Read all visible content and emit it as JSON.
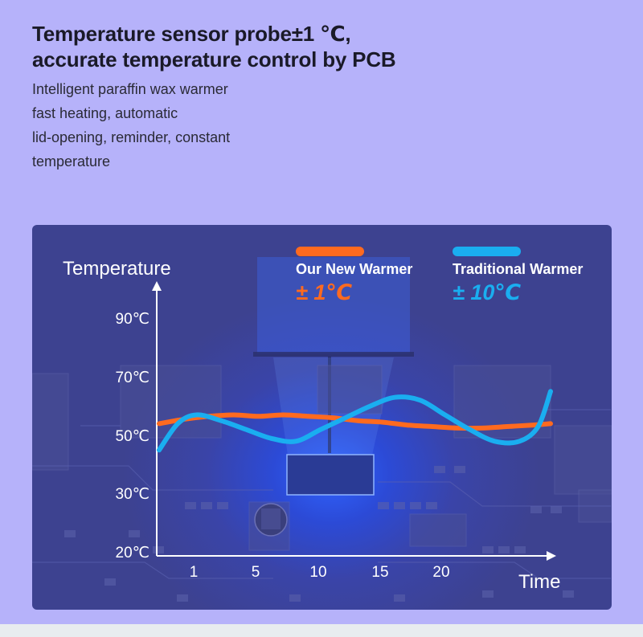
{
  "header": {
    "title_line1": "Temperature sensor probe±1 ℃,",
    "title_line2": "accurate temperature control by PCB",
    "desc_lines": [
      "Intelligent paraffin wax warmer",
      "fast heating, automatic",
      "lid-opening, reminder, constant",
      "temperature"
    ]
  },
  "colors": {
    "page_bg": "#b6b2fa",
    "panel_bg": "#3d4290",
    "orange": "#ff6a1f",
    "blue": "#1aaef0"
  },
  "chart_data": {
    "type": "line",
    "ylabel": "Temperature",
    "xlabel": "Time",
    "y_ticks": [
      {
        "value": 20,
        "label": "20℃"
      },
      {
        "value": 30,
        "label": "30℃"
      },
      {
        "value": 50,
        "label": "50℃"
      },
      {
        "value": 70,
        "label": "70℃"
      },
      {
        "value": 90,
        "label": "90℃"
      }
    ],
    "x_ticks": [
      {
        "value": 1,
        "label": "1"
      },
      {
        "value": 5,
        "label": "5"
      },
      {
        "value": 10,
        "label": "10"
      },
      {
        "value": 15,
        "label": "15"
      },
      {
        "value": 20,
        "label": "20"
      }
    ],
    "legend": [
      {
        "name": "Our New Warmer",
        "value_label": "± 1℃",
        "color": "#ff6a1f"
      },
      {
        "name": "Traditional Warmer",
        "value_label": "± 10℃",
        "color": "#1aaef0"
      }
    ],
    "series": [
      {
        "name": "Our New Warmer",
        "color": "#ff6a1f",
        "x": [
          0,
          2,
          4,
          6,
          8,
          10,
          12,
          14,
          16,
          18,
          20,
          22,
          24,
          26,
          28,
          30,
          31.5
        ],
        "y": [
          54,
          55.5,
          56.5,
          57,
          56.5,
          57,
          56.5,
          56,
          55,
          54.5,
          53.5,
          53,
          52.5,
          52.5,
          53,
          53.5,
          54
        ]
      },
      {
        "name": "Traditional Warmer",
        "color": "#1aaef0",
        "x": [
          0,
          1.5,
          3,
          5,
          7,
          9,
          11,
          13,
          15,
          17,
          19,
          21,
          23,
          25,
          27,
          29,
          30.5,
          31.5
        ],
        "y": [
          45,
          54,
          57,
          55,
          52,
          49,
          48,
          52,
          56,
          60,
          63,
          62,
          57,
          52,
          48,
          48,
          53,
          65
        ]
      }
    ]
  }
}
